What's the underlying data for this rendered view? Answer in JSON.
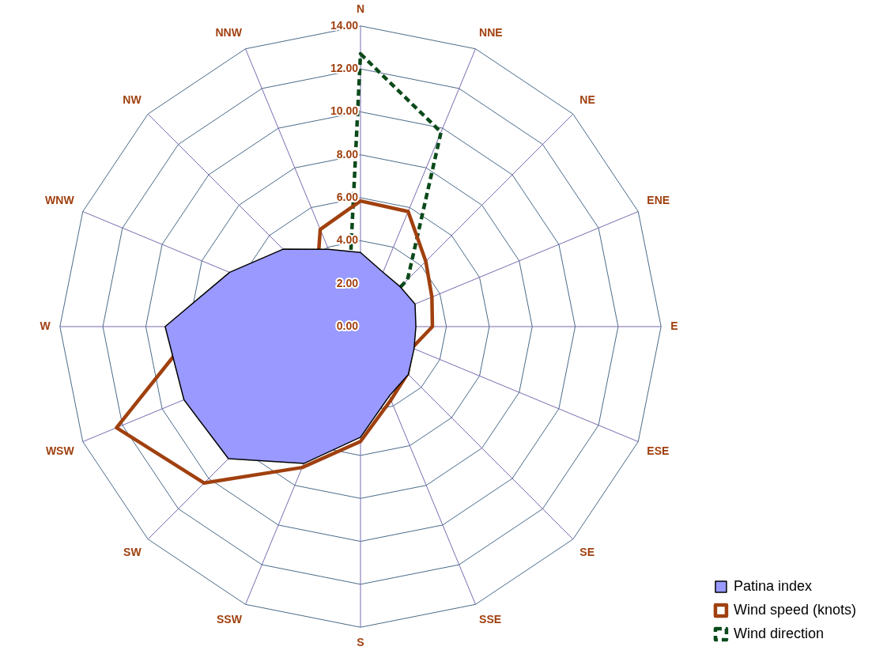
{
  "chart_data": {
    "type": "radar",
    "categories": [
      "N",
      "NNE",
      "NE",
      "ENE",
      "E",
      "ESE",
      "SE",
      "SSE",
      "S",
      "SSW",
      "SW",
      "WSW",
      "W",
      "WNW",
      "NW",
      "NNW"
    ],
    "series": [
      {
        "name": "Patina index",
        "type": "area",
        "color": "#9999ff",
        "values": [
          3.45,
          2.74,
          2.62,
          2.75,
          2.58,
          2.7,
          3.15,
          3.5,
          5.15,
          6.9,
          8.7,
          8.9,
          9.1,
          6.6,
          5.1,
          3.9
        ]
      },
      {
        "name": "Wind speed (knots)",
        "color": "#a0400f",
        "values": [
          5.85,
          5.8,
          4.3,
          3.6,
          3.35,
          2.6,
          3.1,
          3.7,
          5.35,
          7.1,
          10.3,
          12.3,
          7.6,
          3.2,
          2.9,
          4.9
        ]
      },
      {
        "name": "Wind direction",
        "color": "#0b4a1a",
        "line_style": "dashed",
        "values": [
          12.7,
          9.8,
          3.1,
          0.2,
          0.2,
          0.2,
          0.2,
          0.5,
          0.3,
          0.2,
          0.2,
          1.35,
          1.2,
          0.2,
          0.2,
          1.45
        ]
      }
    ],
    "ylim": [
      0,
      14
    ],
    "yticks": [
      {
        "value": 0,
        "label": "0.00"
      },
      {
        "value": 2,
        "label": "2.00"
      },
      {
        "value": 4,
        "label": "4.00"
      },
      {
        "value": 6,
        "label": "6.00"
      },
      {
        "value": 8,
        "label": "8.00"
      },
      {
        "value": 10,
        "label": "10.00"
      },
      {
        "value": 12,
        "label": "12.00"
      },
      {
        "value": 14,
        "label": "14.00"
      }
    ],
    "grid": true,
    "legend": "bottom right",
    "marker": "none"
  }
}
